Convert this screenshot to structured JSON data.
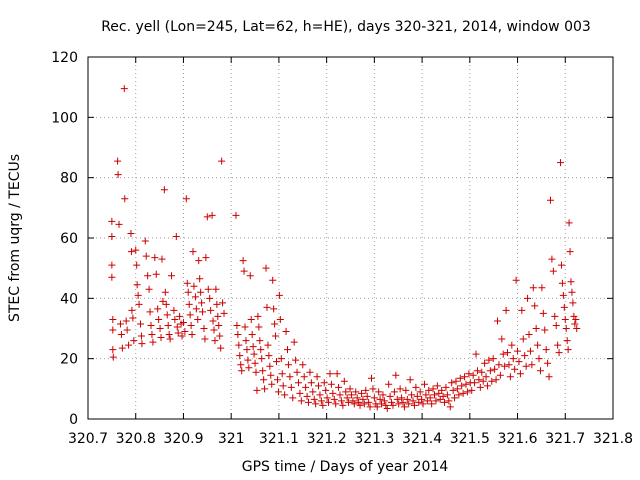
{
  "chart_data": {
    "type": "scatter",
    "title": "Rec. yell (Lon=245, Lat=62, h=HE), days 320-321, 2014, window 003",
    "xlabel": "GPS time / Days of year 2014",
    "ylabel": "STEC from uqrg / TECUs",
    "xlim": [
      320.7,
      321.8
    ],
    "ylim": [
      0,
      120
    ],
    "x_ticks": [
      320.7,
      320.8,
      320.9,
      321.0,
      321.1,
      321.2,
      321.3,
      321.4,
      321.5,
      321.6,
      321.7,
      321.8
    ],
    "x_tick_labels": [
      "320.7",
      "320.8",
      "320.9",
      "321",
      "321.1",
      "321.2",
      "321.3",
      "321.4",
      "321.5",
      "321.6",
      "321.7",
      "321.8"
    ],
    "y_ticks": [
      0,
      20,
      40,
      60,
      80,
      100,
      120
    ],
    "y_tick_labels": [
      "0",
      "20",
      "40",
      "60",
      "80",
      "100",
      "120"
    ],
    "grid": true,
    "marker": "plus",
    "marker_color": "#cc0000",
    "points": [
      [
        320.75,
        65.5
      ],
      [
        320.75,
        60.5
      ],
      [
        320.75,
        51.0
      ],
      [
        320.75,
        47.0
      ],
      [
        320.752,
        33.0
      ],
      [
        320.752,
        29.5
      ],
      [
        320.752,
        23.0
      ],
      [
        320.753,
        20.5
      ],
      [
        320.762,
        85.5
      ],
      [
        320.763,
        81.0
      ],
      [
        320.765,
        64.5
      ],
      [
        320.768,
        31.5
      ],
      [
        320.77,
        28.0
      ],
      [
        320.772,
        23.5
      ],
      [
        320.776,
        109.5
      ],
      [
        320.777,
        73.0
      ],
      [
        320.78,
        32.5
      ],
      [
        320.782,
        29.5
      ],
      [
        320.785,
        24.5
      ],
      [
        320.79,
        61.5
      ],
      [
        320.791,
        55.5
      ],
      [
        320.792,
        36.0
      ],
      [
        320.794,
        33.5
      ],
      [
        320.796,
        26.0
      ],
      [
        320.8,
        56.0
      ],
      [
        320.802,
        51.0
      ],
      [
        320.803,
        44.5
      ],
      [
        320.805,
        41.0
      ],
      [
        320.807,
        38.0
      ],
      [
        320.81,
        31.5
      ],
      [
        320.812,
        27.5
      ],
      [
        320.813,
        25.0
      ],
      [
        320.82,
        59.0
      ],
      [
        320.822,
        54.0
      ],
      [
        320.825,
        47.5
      ],
      [
        320.828,
        43.0
      ],
      [
        320.83,
        35.5
      ],
      [
        320.832,
        31.0
      ],
      [
        320.834,
        28.0
      ],
      [
        320.836,
        25.5
      ],
      [
        320.84,
        53.5
      ],
      [
        320.843,
        48.0
      ],
      [
        320.846,
        36.5
      ],
      [
        320.848,
        33.0
      ],
      [
        320.851,
        30.0
      ],
      [
        320.853,
        27.0
      ],
      [
        320.855,
        53.0
      ],
      [
        320.857,
        39.0
      ],
      [
        320.86,
        76.0
      ],
      [
        320.862,
        42.0
      ],
      [
        320.864,
        38.0
      ],
      [
        320.866,
        34.5
      ],
      [
        320.868,
        31.0
      ],
      [
        320.87,
        28.0
      ],
      [
        320.872,
        26.5
      ],
      [
        320.875,
        47.5
      ],
      [
        320.88,
        36.0
      ],
      [
        320.882,
        33.0
      ],
      [
        320.885,
        60.5
      ],
      [
        320.887,
        30.5
      ],
      [
        320.889,
        28.5
      ],
      [
        320.892,
        34.0
      ],
      [
        320.895,
        31.5
      ],
      [
        320.897,
        27.5
      ],
      [
        320.9,
        32.0
      ],
      [
        320.903,
        29.0
      ],
      [
        320.906,
        73.0
      ],
      [
        320.908,
        45.0
      ],
      [
        320.91,
        42.0
      ],
      [
        320.912,
        38.0
      ],
      [
        320.914,
        34.5
      ],
      [
        320.916,
        31.0
      ],
      [
        320.918,
        28.0
      ],
      [
        320.92,
        55.5
      ],
      [
        320.922,
        44.0
      ],
      [
        320.925,
        40.5
      ],
      [
        320.927,
        36.5
      ],
      [
        320.93,
        33.0
      ],
      [
        320.932,
        52.5
      ],
      [
        320.934,
        46.5
      ],
      [
        320.936,
        42.0
      ],
      [
        320.938,
        38.5
      ],
      [
        320.94,
        35.5
      ],
      [
        320.943,
        30.0
      ],
      [
        320.945,
        26.5
      ],
      [
        320.947,
        53.5
      ],
      [
        320.95,
        67.0
      ],
      [
        320.952,
        43.0
      ],
      [
        320.955,
        40.0
      ],
      [
        320.957,
        36.0
      ],
      [
        320.96,
        67.5
      ],
      [
        320.962,
        32.5
      ],
      [
        320.964,
        29.5
      ],
      [
        320.966,
        26.0
      ],
      [
        320.968,
        43.0
      ],
      [
        320.97,
        38.0
      ],
      [
        320.972,
        34.0
      ],
      [
        320.974,
        31.0
      ],
      [
        320.976,
        27.5
      ],
      [
        320.978,
        23.5
      ],
      [
        320.98,
        85.5
      ],
      [
        320.982,
        38.5
      ],
      [
        320.985,
        35.0
      ],
      [
        321.01,
        67.5
      ],
      [
        321.012,
        31.0
      ],
      [
        321.014,
        28.0
      ],
      [
        321.016,
        24.5
      ],
      [
        321.018,
        21.0
      ],
      [
        321.02,
        18.0
      ],
      [
        321.022,
        16.0
      ],
      [
        321.025,
        52.5
      ],
      [
        321.027,
        49.0
      ],
      [
        321.029,
        30.5
      ],
      [
        321.031,
        26.0
      ],
      [
        321.033,
        23.0
      ],
      [
        321.035,
        19.5
      ],
      [
        321.037,
        17.0
      ],
      [
        321.04,
        47.5
      ],
      [
        321.042,
        33.0
      ],
      [
        321.044,
        28.0
      ],
      [
        321.046,
        24.0
      ],
      [
        321.048,
        21.5
      ],
      [
        321.05,
        18.5
      ],
      [
        321.052,
        15.5
      ],
      [
        321.054,
        9.5
      ],
      [
        321.056,
        34.0
      ],
      [
        321.058,
        30.5
      ],
      [
        321.06,
        26.0
      ],
      [
        321.062,
        23.0
      ],
      [
        321.064,
        20.0
      ],
      [
        321.066,
        16.0
      ],
      [
        321.068,
        13.0
      ],
      [
        321.07,
        10.0
      ],
      [
        321.073,
        50.0
      ],
      [
        321.075,
        37.0
      ],
      [
        321.077,
        24.5
      ],
      [
        321.079,
        21.0
      ],
      [
        321.081,
        17.5
      ],
      [
        321.083,
        14.5
      ],
      [
        321.085,
        11.5
      ],
      [
        321.087,
        46.0
      ],
      [
        321.089,
        36.5
      ],
      [
        321.091,
        31.5
      ],
      [
        321.093,
        27.5
      ],
      [
        321.095,
        19.0
      ],
      [
        321.097,
        13.0
      ],
      [
        321.099,
        9.0
      ],
      [
        321.101,
        41.0
      ],
      [
        321.103,
        33.0
      ],
      [
        321.105,
        20.0
      ],
      [
        321.107,
        15.0
      ],
      [
        321.109,
        11.0
      ],
      [
        321.112,
        8.0
      ],
      [
        321.115,
        29.0
      ],
      [
        321.118,
        23.0
      ],
      [
        321.12,
        18.0
      ],
      [
        321.123,
        14.0
      ],
      [
        321.126,
        10.5
      ],
      [
        321.129,
        7.0
      ],
      [
        321.132,
        25.5
      ],
      [
        321.135,
        19.5
      ],
      [
        321.138,
        15.5
      ],
      [
        321.141,
        12.0
      ],
      [
        321.144,
        8.5
      ],
      [
        321.147,
        6.0
      ],
      [
        321.15,
        18.0
      ],
      [
        321.153,
        14.0
      ],
      [
        321.156,
        10.5
      ],
      [
        321.159,
        7.5
      ],
      [
        321.162,
        5.5
      ],
      [
        321.165,
        15.5
      ],
      [
        321.168,
        12.0
      ],
      [
        321.171,
        9.0
      ],
      [
        321.174,
        6.5
      ],
      [
        321.177,
        5.0
      ],
      [
        321.18,
        14.0
      ],
      [
        321.183,
        11.0
      ],
      [
        321.186,
        8.0
      ],
      [
        321.189,
        6.0
      ],
      [
        321.192,
        4.5
      ],
      [
        321.195,
        12.0
      ],
      [
        321.198,
        9.5
      ],
      [
        321.201,
        7.0
      ],
      [
        321.204,
        5.5
      ],
      [
        321.207,
        15.0
      ],
      [
        321.21,
        11.5
      ],
      [
        321.213,
        8.5
      ],
      [
        321.216,
        6.5
      ],
      [
        321.219,
        5.0
      ],
      [
        321.222,
        15.0
      ],
      [
        321.225,
        10.5
      ],
      [
        321.228,
        8.0
      ],
      [
        321.231,
        6.0
      ],
      [
        321.234,
        4.5
      ],
      [
        321.237,
        12.5
      ],
      [
        321.24,
        9.0
      ],
      [
        321.243,
        7.0
      ],
      [
        321.246,
        5.5
      ],
      [
        321.249,
        10.0
      ],
      [
        321.252,
        8.0
      ],
      [
        321.255,
        6.0
      ],
      [
        321.258,
        5.0
      ],
      [
        321.261,
        9.0
      ],
      [
        321.264,
        7.0
      ],
      [
        321.267,
        5.5
      ],
      [
        321.27,
        4.5
      ],
      [
        321.273,
        8.5
      ],
      [
        321.276,
        6.5
      ],
      [
        321.279,
        5.0
      ],
      [
        321.282,
        9.5
      ],
      [
        321.285,
        7.5
      ],
      [
        321.288,
        5.5
      ],
      [
        321.291,
        4.0
      ],
      [
        321.294,
        13.5
      ],
      [
        321.297,
        10.0
      ],
      [
        321.3,
        7.0
      ],
      [
        321.303,
        5.0
      ],
      [
        321.306,
        4.0
      ],
      [
        321.309,
        9.0
      ],
      [
        321.312,
        6.5
      ],
      [
        321.315,
        5.0
      ],
      [
        321.318,
        8.0
      ],
      [
        321.321,
        6.0
      ],
      [
        321.324,
        4.5
      ],
      [
        321.327,
        3.5
      ],
      [
        321.33,
        11.5
      ],
      [
        321.333,
        7.5
      ],
      [
        321.336,
        5.5
      ],
      [
        321.339,
        4.5
      ],
      [
        321.342,
        9.0
      ],
      [
        321.345,
        14.5
      ],
      [
        321.348,
        6.5
      ],
      [
        321.351,
        5.0
      ],
      [
        321.354,
        10.0
      ],
      [
        321.357,
        7.0
      ],
      [
        321.36,
        5.5
      ],
      [
        321.363,
        4.0
      ],
      [
        321.366,
        9.5
      ],
      [
        321.369,
        6.5
      ],
      [
        321.372,
        5.0
      ],
      [
        321.375,
        13.0
      ],
      [
        321.378,
        8.0
      ],
      [
        321.381,
        6.0
      ],
      [
        321.384,
        4.5
      ],
      [
        321.387,
        10.5
      ],
      [
        321.39,
        7.5
      ],
      [
        321.393,
        5.5
      ],
      [
        321.396,
        9.0
      ],
      [
        321.399,
        6.5
      ],
      [
        321.402,
        5.0
      ],
      [
        321.405,
        11.5
      ],
      [
        321.408,
        8.0
      ],
      [
        321.411,
        6.0
      ],
      [
        321.414,
        9.5
      ],
      [
        321.417,
        7.0
      ],
      [
        321.42,
        5.0
      ],
      [
        321.423,
        10.0
      ],
      [
        321.426,
        8.0
      ],
      [
        321.429,
        6.0
      ],
      [
        321.432,
        11.0
      ],
      [
        321.435,
        8.5
      ],
      [
        321.438,
        6.5
      ],
      [
        321.441,
        9.5
      ],
      [
        321.444,
        7.5
      ],
      [
        321.447,
        5.5
      ],
      [
        321.45,
        10.5
      ],
      [
        321.453,
        8.0
      ],
      [
        321.456,
        6.0
      ],
      [
        321.459,
        4.0
      ],
      [
        321.462,
        12.0
      ],
      [
        321.465,
        9.5
      ],
      [
        321.468,
        7.0
      ],
      [
        321.471,
        12.5
      ],
      [
        321.474,
        10.0
      ],
      [
        321.477,
        8.0
      ],
      [
        321.48,
        13.5
      ],
      [
        321.483,
        11.0
      ],
      [
        321.486,
        8.5
      ],
      [
        321.489,
        14.0
      ],
      [
        321.492,
        11.5
      ],
      [
        321.495,
        9.0
      ],
      [
        321.498,
        15.0
      ],
      [
        321.501,
        12.0
      ],
      [
        321.504,
        9.5
      ],
      [
        321.507,
        14.5
      ],
      [
        321.51,
        12.0
      ],
      [
        321.513,
        21.5
      ],
      [
        321.516,
        16.0
      ],
      [
        321.519,
        13.0
      ],
      [
        321.522,
        10.5
      ],
      [
        321.525,
        15.5
      ],
      [
        321.528,
        12.5
      ],
      [
        321.531,
        18.5
      ],
      [
        321.534,
        14.0
      ],
      [
        321.537,
        11.0
      ],
      [
        321.54,
        19.5
      ],
      [
        321.543,
        16.0
      ],
      [
        321.546,
        12.5
      ],
      [
        321.549,
        20.0
      ],
      [
        321.552,
        16.5
      ],
      [
        321.555,
        13.0
      ],
      [
        321.558,
        32.5
      ],
      [
        321.561,
        18.0
      ],
      [
        321.564,
        14.5
      ],
      [
        321.567,
        26.5
      ],
      [
        321.57,
        21.5
      ],
      [
        321.573,
        17.5
      ],
      [
        321.576,
        36.0
      ],
      [
        321.579,
        22.0
      ],
      [
        321.582,
        18.0
      ],
      [
        321.585,
        14.0
      ],
      [
        321.588,
        24.5
      ],
      [
        321.591,
        20.0
      ],
      [
        321.594,
        16.5
      ],
      [
        321.597,
        46.0
      ],
      [
        321.6,
        22.5
      ],
      [
        321.603,
        19.0
      ],
      [
        321.606,
        15.0
      ],
      [
        321.609,
        36.0
      ],
      [
        321.612,
        26.5
      ],
      [
        321.615,
        21.0
      ],
      [
        321.618,
        17.5
      ],
      [
        321.621,
        40.0
      ],
      [
        321.624,
        28.0
      ],
      [
        321.627,
        22.5
      ],
      [
        321.63,
        18.0
      ],
      [
        321.633,
        43.5
      ],
      [
        321.636,
        37.5
      ],
      [
        321.639,
        30.0
      ],
      [
        321.642,
        24.5
      ],
      [
        321.645,
        20.0
      ],
      [
        321.648,
        16.0
      ],
      [
        321.651,
        43.5
      ],
      [
        321.654,
        35.0
      ],
      [
        321.657,
        29.5
      ],
      [
        321.66,
        23.0
      ],
      [
        321.663,
        18.5
      ],
      [
        321.666,
        14.0
      ],
      [
        321.669,
        72.5
      ],
      [
        321.672,
        53.0
      ],
      [
        321.675,
        49.0
      ],
      [
        321.678,
        34.0
      ],
      [
        321.681,
        31.0
      ],
      [
        321.684,
        24.5
      ],
      [
        321.687,
        22.0
      ],
      [
        321.69,
        85.0
      ],
      [
        321.692,
        51.0
      ],
      [
        321.694,
        45.0
      ],
      [
        321.696,
        41.0
      ],
      [
        321.698,
        37.0
      ],
      [
        321.7,
        33.0
      ],
      [
        321.702,
        30.0
      ],
      [
        321.704,
        26.0
      ],
      [
        321.706,
        23.0
      ],
      [
        321.708,
        65.0
      ],
      [
        321.71,
        55.5
      ],
      [
        321.712,
        45.5
      ],
      [
        321.714,
        42.0
      ],
      [
        321.716,
        38.5
      ],
      [
        321.718,
        34.0
      ],
      [
        321.72,
        31.5
      ],
      [
        321.722,
        33.0
      ],
      [
        321.724,
        30.0
      ]
    ]
  }
}
